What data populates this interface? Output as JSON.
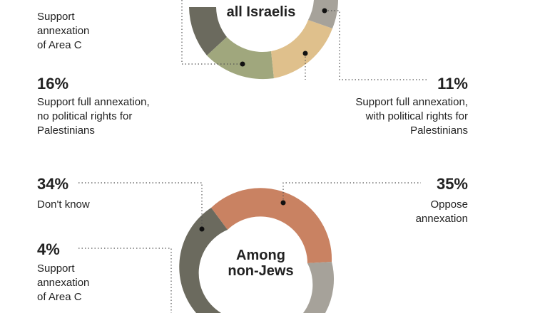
{
  "colors": {
    "dark_gray": "#6b6a5e",
    "olive": "#a0a77d",
    "tan": "#dfc08c",
    "light_gray": "#a6a29a",
    "terracotta": "#c98262",
    "text": "#222222"
  },
  "chart_data": [
    {
      "type": "donut",
      "center_label": "all Israelis",
      "segments": [
        {
          "label": "Support annexation of Area C",
          "percent": null,
          "color": "#6b6a5e"
        },
        {
          "label": "Support full annexation, no political rights for Palestinians",
          "percent": 16,
          "color": "#a0a77d"
        },
        {
          "label": "Support full annexation, with political rights for Palestinians",
          "percent": 11,
          "color": "#dfc08c"
        },
        {
          "label": "",
          "percent": null,
          "color": "#a6a29a"
        }
      ]
    },
    {
      "type": "donut",
      "center_label": "Among\nnon-Jews",
      "segments": [
        {
          "label": "Oppose annexation",
          "percent": 35,
          "color": "#c98262"
        },
        {
          "label": "",
          "percent": null,
          "color": "#a6a29a"
        },
        {
          "label": "Support annexation of Area C",
          "percent": 4,
          "color": "#6b6a5e"
        },
        {
          "label": "Don't know",
          "percent": 34,
          "color": "#6b6a5e"
        }
      ]
    }
  ],
  "annotations": {
    "top_left_label": "Support\nannexation\nof Area C",
    "left_mid_pct": "16%",
    "left_mid_label": "Support full annexation,\nno political rights for\nPalestinians",
    "right_mid_pct": "11%",
    "right_mid_label": "Support full annexation,\nwith political rights for\nPalestinians",
    "top_center": "all Israelis",
    "dk_pct": "34%",
    "dk_label": "Don't know",
    "oppose_pct": "35%",
    "oppose_label": "Oppose\nannexation",
    "areac_pct": "4%",
    "areac_label": "Support\nannexation\nof Area C",
    "bottom_center": "Among\nnon-Jews"
  }
}
